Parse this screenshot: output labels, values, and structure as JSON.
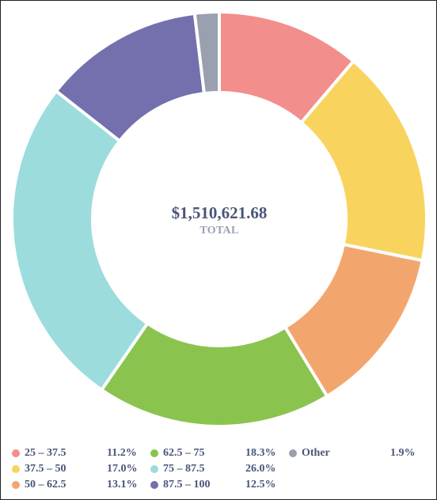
{
  "chart_data": {
    "type": "pie",
    "style": "donut",
    "center_total": "$1,510,621.68",
    "center_label": "TOTAL",
    "legend_placement": "bottom",
    "slices": [
      {
        "label": "25 – 37.5",
        "value": 11.2,
        "pct_label": "11.2%",
        "color": "#f28e8c"
      },
      {
        "label": "37.5 – 50",
        "value": 17.0,
        "pct_label": "17.0%",
        "color": "#f8d45f"
      },
      {
        "label": "50 – 62.5",
        "value": 13.1,
        "pct_label": "13.1%",
        "color": "#f2a66e"
      },
      {
        "label": "62.5 – 75",
        "value": 18.3,
        "pct_label": "18.3%",
        "color": "#8bc34f"
      },
      {
        "label": "75 – 87.5",
        "value": 26.0,
        "pct_label": "26.0%",
        "color": "#9cdcdc"
      },
      {
        "label": "87.5 – 100",
        "value": 12.5,
        "pct_label": "12.5%",
        "color": "#7470ae"
      },
      {
        "label": "Other",
        "value": 1.9,
        "pct_label": "1.9%",
        "color": "#9aa0b0"
      }
    ]
  }
}
